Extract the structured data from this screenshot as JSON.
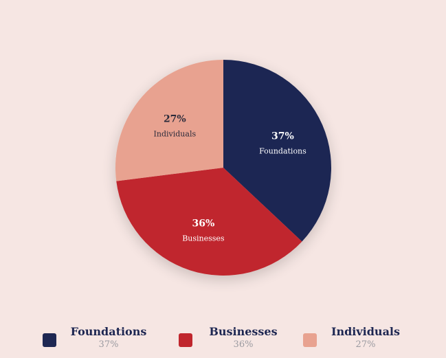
{
  "chart_data": {
    "type": "pie",
    "slices": [
      {
        "label": "Foundations",
        "value": 37,
        "display": "37%",
        "color": "#1e2752",
        "label_color": "#ffffff"
      },
      {
        "label": "Businesses",
        "value": 36,
        "display": "36%",
        "color": "#c0262d",
        "label_color": "#ffffff"
      },
      {
        "label": "Individuals",
        "value": 27,
        "display": "27%",
        "color": "#e8a290",
        "label_color": "#2a2a3a"
      }
    ],
    "start_angle": "12 o'clock",
    "direction": "clockwise",
    "legend_position": "bottom"
  },
  "colors": {
    "background": "#f6e6e3",
    "legend_title": "#1e2752",
    "legend_value": "#9a9aa0"
  }
}
